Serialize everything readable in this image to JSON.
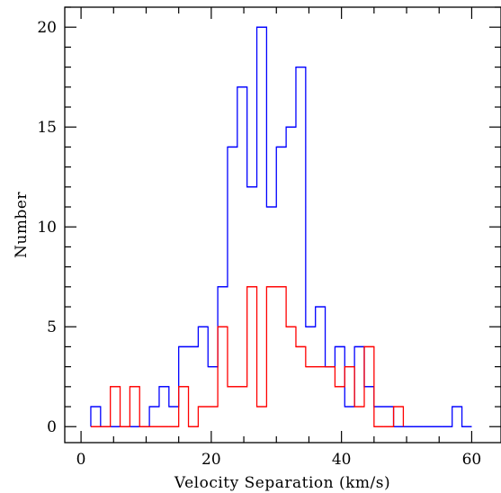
{
  "chart_data": {
    "type": "histogram",
    "title": "",
    "xlabel": "Velocity Separation (km/s)",
    "ylabel": "Number",
    "xlim": [
      -2.5,
      64.5
    ],
    "ylim": [
      -0.8,
      21
    ],
    "x_major_ticks": [
      0,
      20,
      40,
      60
    ],
    "y_major_ticks": [
      0,
      5,
      10,
      15,
      20
    ],
    "grid": false,
    "legend": "none",
    "bin_width": 1.5,
    "series": [
      {
        "color": "#0000ff",
        "bin_edges": [
          1.5,
          3,
          4.5,
          6,
          7.5,
          9,
          10.5,
          12,
          13.5,
          15,
          16.5,
          18,
          19.5,
          21,
          22.5,
          24,
          25.5,
          27,
          28.5,
          30,
          31.5,
          33,
          34.5,
          36,
          37.5,
          39,
          40.5,
          42,
          43.5,
          45,
          46.5,
          48,
          49.5,
          51,
          52.5,
          54,
          55.5,
          57,
          58.5,
          60
        ],
        "counts": [
          1,
          0,
          0,
          0,
          0,
          0,
          1,
          2,
          1,
          4,
          4,
          5,
          3,
          7,
          14,
          17,
          12,
          20,
          11,
          14,
          15,
          18,
          5,
          6,
          3,
          4,
          1,
          4,
          2,
          1,
          1,
          0,
          0,
          0,
          0,
          0,
          0,
          1,
          0
        ]
      },
      {
        "color": "#ff0000",
        "bin_edges": [
          1.5,
          3,
          4.5,
          6,
          7.5,
          9,
          10.5,
          12,
          13.5,
          15,
          16.5,
          18,
          19.5,
          21,
          22.5,
          24,
          25.5,
          27,
          28.5,
          30,
          31.5,
          33,
          34.5,
          36,
          37.5,
          39,
          40.5,
          42,
          43.5,
          45,
          46.5,
          48,
          49.5
        ],
        "counts": [
          0,
          0,
          2,
          0,
          2,
          0,
          0,
          0,
          0,
          2,
          0,
          1,
          1,
          5,
          2,
          2,
          7,
          1,
          7,
          7,
          5,
          4,
          3,
          3,
          3,
          2,
          3,
          1,
          4,
          0,
          0,
          1
        ]
      }
    ]
  }
}
